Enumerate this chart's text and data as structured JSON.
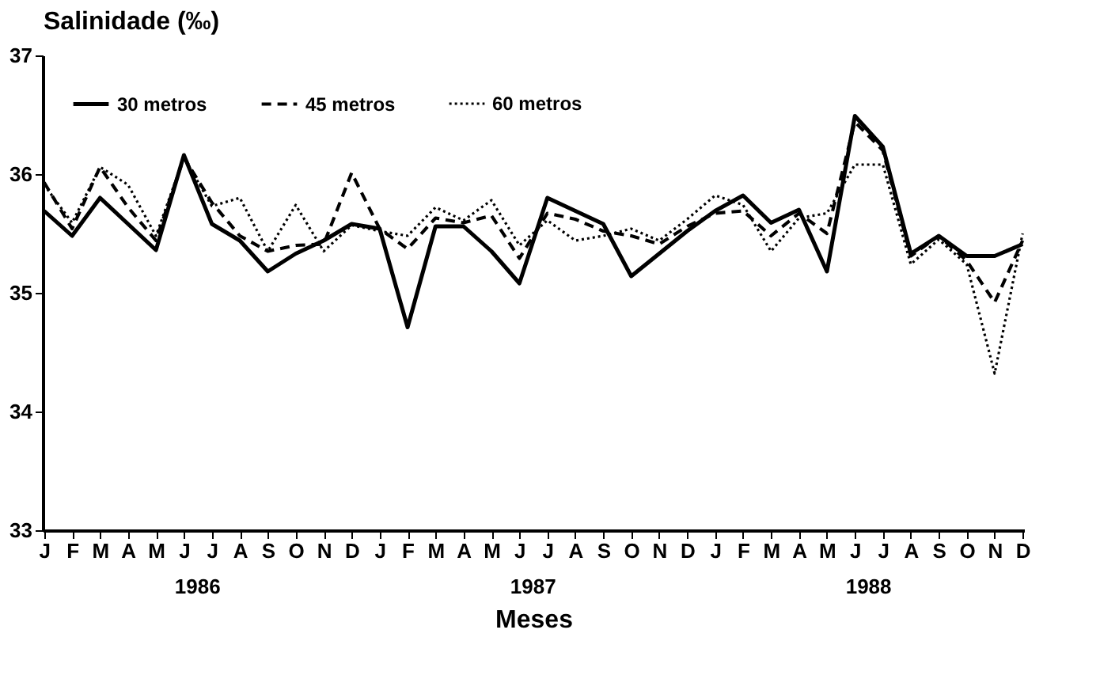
{
  "chart_data": {
    "type": "line",
    "ylabel": "Salinidade (‰)",
    "xlabel": "Meses",
    "categories": [
      "J",
      "F",
      "M",
      "A",
      "M",
      "J",
      "J",
      "A",
      "S",
      "O",
      "N",
      "D",
      "J",
      "F",
      "M",
      "A",
      "M",
      "J",
      "J",
      "A",
      "S",
      "O",
      "N",
      "D",
      "J",
      "F",
      "M",
      "A",
      "M",
      "J",
      "J",
      "A",
      "S",
      "O",
      "N",
      "D"
    ],
    "annotations": [
      "1986",
      "1987",
      "1988"
    ],
    "ylim": [
      33,
      37
    ],
    "yticks": [
      33,
      34,
      35,
      36,
      37
    ],
    "grid": false,
    "legend": "top left",
    "marker": "none",
    "series": [
      {
        "name": "30 metros",
        "color": "#000000",
        "line_style": "solid",
        "values": [
          35.69,
          35.48,
          35.8,
          35.58,
          35.36,
          36.16,
          35.58,
          35.44,
          35.18,
          35.33,
          35.44,
          35.58,
          35.54,
          34.71,
          35.56,
          35.56,
          35.35,
          35.08,
          35.8,
          35.69,
          35.58,
          35.14,
          35.33,
          35.52,
          35.69,
          35.82,
          35.59,
          35.7,
          35.18,
          36.49,
          36.23,
          35.33,
          35.48,
          35.31,
          35.31,
          35.41
        ]
      },
      {
        "name": "45 metros",
        "color": "#000000",
        "line_style": "dashed",
        "values": [
          35.93,
          35.54,
          36.06,
          35.72,
          35.44,
          36.14,
          35.76,
          35.48,
          35.35,
          35.4,
          35.41,
          36.01,
          35.54,
          35.37,
          35.63,
          35.59,
          35.65,
          35.29,
          35.67,
          35.62,
          35.52,
          35.48,
          35.41,
          35.56,
          35.67,
          35.69,
          35.48,
          35.67,
          35.5,
          36.44,
          36.2,
          35.31,
          35.48,
          35.27,
          34.92,
          35.44
        ]
      },
      {
        "name": "60 metros",
        "color": "#000000",
        "line_style": "dotted",
        "values": [
          35.91,
          35.59,
          36.06,
          35.91,
          35.48,
          36.14,
          35.73,
          35.8,
          35.35,
          35.74,
          35.35,
          35.57,
          35.52,
          35.48,
          35.72,
          35.61,
          35.78,
          35.4,
          35.61,
          35.44,
          35.48,
          35.54,
          35.44,
          35.62,
          35.82,
          35.74,
          35.35,
          35.63,
          35.67,
          36.08,
          36.08,
          35.24,
          35.45,
          35.24,
          34.32,
          35.5
        ]
      }
    ]
  }
}
